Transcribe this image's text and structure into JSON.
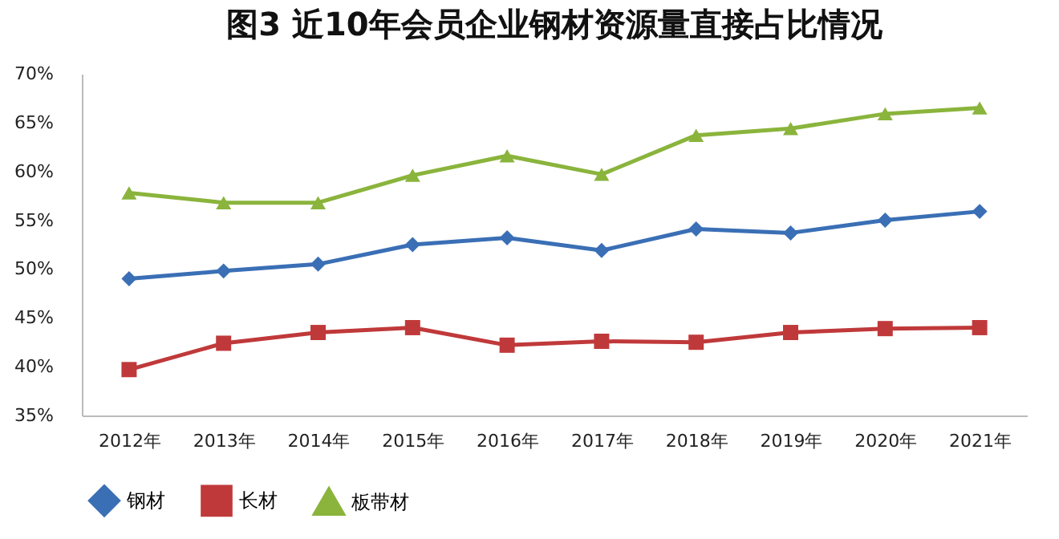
{
  "chart_data": {
    "type": "line",
    "title": "图3 近10年会员企业钢材资源量直接占比情况",
    "categories": [
      "2012年",
      "2013年",
      "2014年",
      "2015年",
      "2016年",
      "2017年",
      "2018年",
      "2019年",
      "2020年",
      "2021年"
    ],
    "series": [
      {
        "name": "钢材",
        "color": "#3a6fb5",
        "marker": "diamond",
        "values": [
          49.0,
          49.8,
          50.5,
          52.5,
          53.2,
          51.9,
          54.1,
          53.7,
          55.0,
          55.9
        ]
      },
      {
        "name": "长材",
        "color": "#c0393a",
        "marker": "square",
        "values": [
          39.7,
          42.4,
          43.5,
          44.0,
          42.2,
          42.6,
          42.5,
          43.5,
          43.9,
          44.0
        ]
      },
      {
        "name": "板带材",
        "color": "#8ab43c",
        "marker": "triangle",
        "values": [
          57.8,
          56.8,
          56.8,
          59.6,
          61.6,
          59.7,
          63.7,
          64.4,
          65.9,
          66.5
        ]
      }
    ],
    "ylim": [
      35,
      70
    ],
    "yticks": [
      {
        "value": 35,
        "label": "35%"
      },
      {
        "value": 40,
        "label": "40%"
      },
      {
        "value": 45,
        "label": "45%"
      },
      {
        "value": 50,
        "label": "50%"
      },
      {
        "value": 55,
        "label": "55%"
      },
      {
        "value": 60,
        "label": "60%"
      },
      {
        "value": 65,
        "label": "65%"
      },
      {
        "value": 70,
        "label": "70%"
      }
    ],
    "grid": false,
    "legend": "bottom",
    "line_style": "solid"
  }
}
